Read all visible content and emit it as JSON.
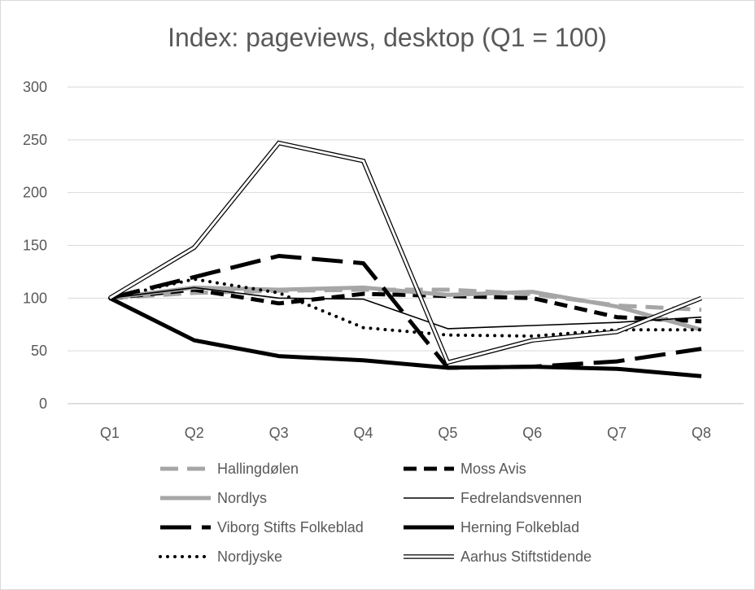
{
  "chart_data": {
    "type": "line",
    "title": "Index: pageviews, desktop (Q1 = 100)",
    "categories": [
      "Q1",
      "Q2",
      "Q3",
      "Q4",
      "Q5",
      "Q6",
      "Q7",
      "Q8"
    ],
    "ylim": [
      0,
      300
    ],
    "yticks": [
      0,
      50,
      100,
      150,
      200,
      250,
      300
    ],
    "grid": true,
    "legend_position": "bottom",
    "series": [
      {
        "name": "Hallingdølen",
        "style": "long-dash",
        "color": "#a6a6a6",
        "values": [
          100,
          105,
          107,
          108,
          108,
          104,
          93,
          89
        ]
      },
      {
        "name": "Moss Avis",
        "style": "dash",
        "color": "#000000",
        "values": [
          100,
          108,
          95,
          104,
          102,
          100,
          82,
          78
        ]
      },
      {
        "name": "Nordlys",
        "style": "solid-thick",
        "color": "#a6a6a6",
        "values": [
          100,
          110,
          108,
          110,
          103,
          106,
          92,
          70
        ]
      },
      {
        "name": "Fedrelandsvennen",
        "style": "solid-thin",
        "color": "#000000",
        "values": [
          100,
          110,
          100,
          99,
          71,
          74,
          77,
          82
        ]
      },
      {
        "name": "Viborg Stifts Folkeblad",
        "style": "long-dash-thick",
        "color": "#000000",
        "values": [
          100,
          120,
          140,
          133,
          34,
          35,
          40,
          52
        ]
      },
      {
        "name": "Herning Folkeblad",
        "style": "solid-thick",
        "color": "#000000",
        "values": [
          100,
          60,
          45,
          41,
          34,
          35,
          33,
          26
        ]
      },
      {
        "name": "Nordjyske",
        "style": "dotted",
        "color": "#000000",
        "values": [
          100,
          118,
          105,
          72,
          65,
          64,
          70,
          70
        ]
      },
      {
        "name": "Aarhus Stiftstidende",
        "style": "double",
        "color": "#000000",
        "values": [
          100,
          148,
          247,
          230,
          39,
          60,
          68,
          100
        ]
      }
    ]
  }
}
